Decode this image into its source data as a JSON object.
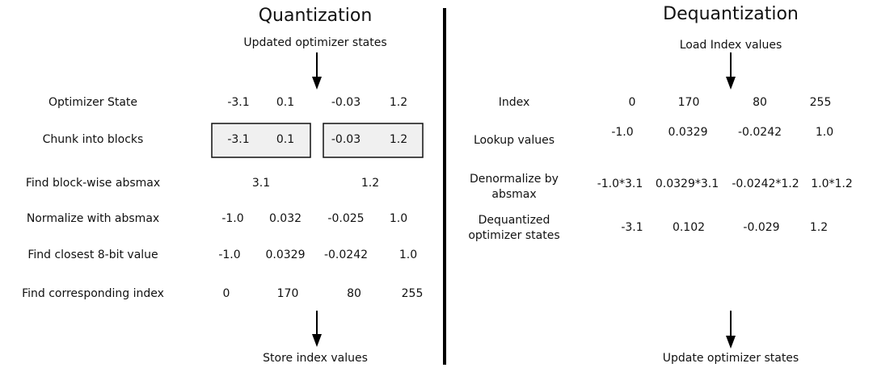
{
  "quantization": {
    "title": "Quantization",
    "input": "Updated optimizer states",
    "output": "Store index values",
    "rows": [
      {
        "label": "Optimizer State",
        "values": [
          "-3.1",
          "0.1",
          "-0.03",
          "1.2"
        ]
      },
      {
        "label": "Chunk into blocks",
        "values": [
          "-3.1",
          "0.1",
          "-0.03",
          "1.2"
        ]
      },
      {
        "label": "Find block-wise absmax",
        "values": [
          "3.1",
          "1.2"
        ]
      },
      {
        "label": "Normalize with absmax",
        "values": [
          "-1.0",
          "0.032",
          "-0.025",
          "1.0"
        ]
      },
      {
        "label": "Find closest 8-bit value",
        "values": [
          "-1.0",
          "0.0329",
          "-0.0242",
          "1.0"
        ]
      },
      {
        "label": "Find corresponding index",
        "values": [
          "0",
          "170",
          "80",
          "255"
        ]
      }
    ]
  },
  "dequantization": {
    "title": "Dequantization",
    "input": "Load Index values",
    "output": "Update optimizer states",
    "rows": [
      {
        "label": "Index",
        "values": [
          "0",
          "170",
          "80",
          "255"
        ]
      },
      {
        "label": "Lookup values",
        "values": [
          "-1.0",
          "0.0329",
          "-0.0242",
          "1.0"
        ]
      },
      {
        "label": [
          "Denormalize by",
          "absmax"
        ],
        "values": [
          "-1.0*3.1",
          "0.0329*3.1",
          "-0.0242*1.2",
          "1.0*1.2"
        ]
      },
      {
        "label": [
          "Dequantized",
          "optimizer states"
        ],
        "values": [
          "-3.1",
          "0.102",
          "-0.029",
          "1.2"
        ]
      }
    ]
  }
}
